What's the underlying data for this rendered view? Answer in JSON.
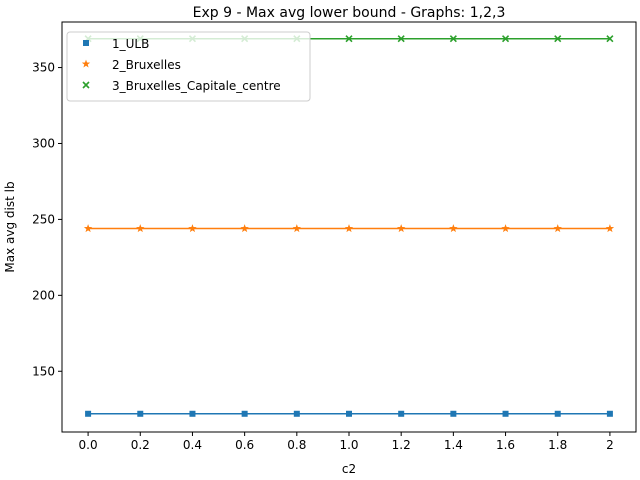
{
  "chart_data": {
    "type": "line",
    "title": "Exp 9 - Max avg lower bound - Graphs: 1,2,3",
    "xlabel": "c2",
    "ylabel": "Max avg dist lb",
    "x": [
      0.0,
      0.2,
      0.4,
      0.6,
      0.8,
      1.0,
      1.2,
      1.4,
      1.6,
      1.8,
      2.0
    ],
    "x_tick_labels": [
      "0.0",
      "0.2",
      "0.4",
      "0.6",
      "0.8",
      "1.0",
      "1.2",
      "1.4",
      "1.6",
      "1.8",
      "2"
    ],
    "y_ticks": [
      150,
      200,
      250,
      300,
      350
    ],
    "y_tick_labels": [
      "150",
      "200",
      "250",
      "300",
      "350"
    ],
    "xlim": [
      -0.1,
      2.1
    ],
    "ylim": [
      110,
      380
    ],
    "grid": false,
    "legend_position": "top-left",
    "series": [
      {
        "name": "1_ULB",
        "color": "#1f77b4",
        "marker": "square",
        "values": [
          122,
          122,
          122,
          122,
          122,
          122,
          122,
          122,
          122,
          122,
          122
        ]
      },
      {
        "name": "2_Bruxelles",
        "color": "#ff7f0e",
        "marker": "star",
        "values": [
          244,
          244,
          244,
          244,
          244,
          244,
          244,
          244,
          244,
          244,
          244
        ]
      },
      {
        "name": "3_Bruxelles_Capitale_centre",
        "color": "#2ca02c",
        "marker": "x",
        "values": [
          369,
          369,
          369,
          369,
          369,
          369,
          369,
          369,
          369,
          369,
          369
        ]
      }
    ]
  }
}
